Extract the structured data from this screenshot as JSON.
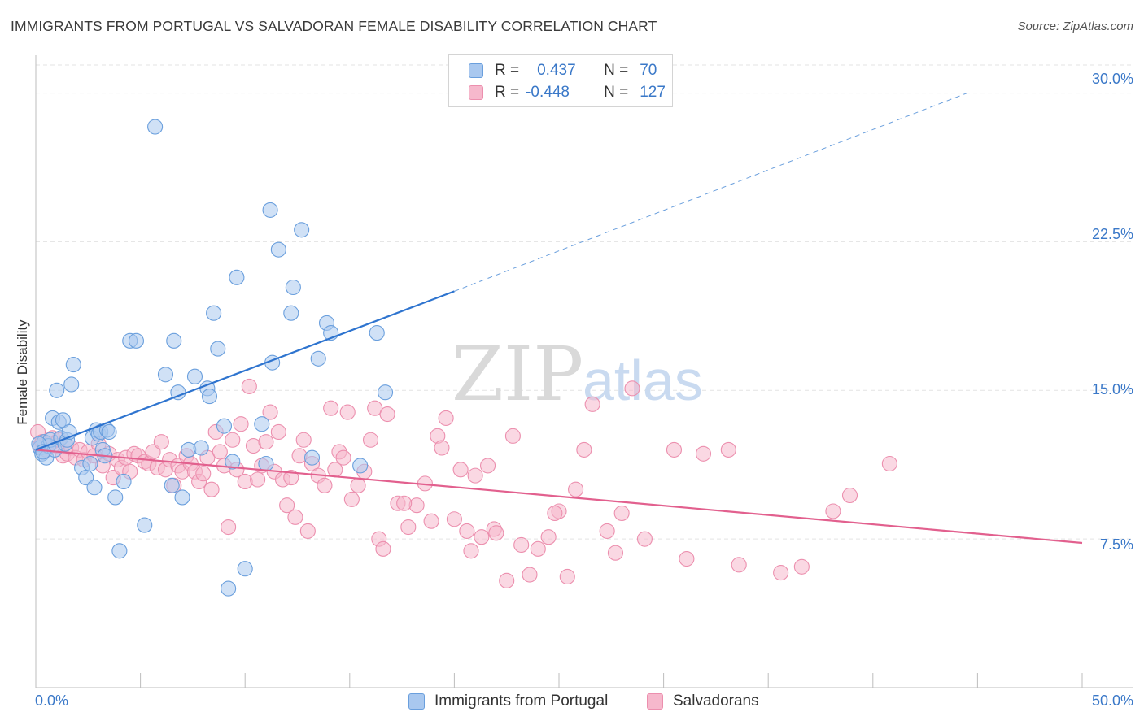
{
  "header": {
    "title": "IMMIGRANTS FROM PORTUGAL VS SALVADORAN FEMALE DISABILITY CORRELATION CHART",
    "source": "Source: ZipAtlas.com"
  },
  "watermark": {
    "part1": "ZIP",
    "part2": "atlas"
  },
  "legend": {
    "row1": {
      "r_label": "R =",
      "r_value": "0.437",
      "n_label": "N =",
      "n_value": "70"
    },
    "row2": {
      "r_label": "R =",
      "r_value": "-0.448",
      "n_label": "N =",
      "n_value": "127"
    }
  },
  "colors": {
    "blue_fill": "#a9c8ef",
    "blue_stroke": "#6a9fdd",
    "blue_line": "#2e74cf",
    "pink_fill": "#f6b8cc",
    "pink_stroke": "#ec8fae",
    "pink_line": "#e2608e",
    "tick_text": "#3a78c8",
    "grid": "#e3e3e3"
  },
  "chart_data": {
    "type": "scatter",
    "title": "IMMIGRANTS FROM PORTUGAL VS SALVADORAN FEMALE DISABILITY CORRELATION CHART",
    "xlabel": "",
    "ylabel": "Female Disability",
    "xlim": [
      0,
      50
    ],
    "ylim": [
      0,
      31.5
    ],
    "x_ticks": [
      0,
      50
    ],
    "x_tick_labels": [
      "0.0%",
      "50.0%"
    ],
    "y_ticks": [
      7.5,
      15.0,
      22.5,
      30.0
    ],
    "y_tick_labels": [
      "7.5%",
      "15.0%",
      "22.5%",
      "30.0%"
    ],
    "grid": true,
    "legend_position": "top-center",
    "series": [
      {
        "name": "Immigrants from Portugal",
        "color": "blue",
        "points": [
          [
            0.2,
            12.1
          ],
          [
            0.3,
            11.8
          ],
          [
            0.4,
            12.4
          ],
          [
            0.5,
            11.6
          ],
          [
            0.6,
            12.2
          ],
          [
            0.7,
            12.5
          ],
          [
            0.8,
            13.6
          ],
          [
            0.9,
            12.0
          ],
          [
            1.0,
            15.0
          ],
          [
            1.1,
            13.4
          ],
          [
            1.2,
            12.6
          ],
          [
            1.3,
            13.5
          ],
          [
            1.4,
            12.3
          ],
          [
            1.5,
            12.5
          ],
          [
            1.6,
            12.9
          ],
          [
            1.7,
            15.3
          ],
          [
            1.8,
            16.3
          ],
          [
            2.2,
            11.1
          ],
          [
            2.4,
            10.6
          ],
          [
            2.6,
            11.3
          ],
          [
            2.7,
            12.6
          ],
          [
            2.8,
            10.1
          ],
          [
            2.9,
            13.0
          ],
          [
            3.0,
            12.8
          ],
          [
            3.1,
            12.9
          ],
          [
            3.2,
            12.0
          ],
          [
            3.3,
            11.7
          ],
          [
            3.4,
            13.0
          ],
          [
            3.5,
            12.9
          ],
          [
            3.8,
            9.6
          ],
          [
            4.0,
            6.9
          ],
          [
            4.2,
            10.4
          ],
          [
            4.5,
            17.5
          ],
          [
            4.8,
            17.5
          ],
          [
            5.2,
            8.2
          ],
          [
            5.7,
            28.3
          ],
          [
            6.2,
            15.8
          ],
          [
            6.5,
            10.2
          ],
          [
            6.6,
            17.5
          ],
          [
            6.8,
            14.9
          ],
          [
            7.0,
            9.6
          ],
          [
            7.3,
            12.0
          ],
          [
            7.6,
            15.7
          ],
          [
            7.9,
            12.1
          ],
          [
            8.2,
            15.1
          ],
          [
            8.3,
            14.7
          ],
          [
            8.5,
            18.9
          ],
          [
            8.7,
            17.1
          ],
          [
            9.0,
            13.2
          ],
          [
            9.2,
            5.0
          ],
          [
            9.4,
            11.4
          ],
          [
            9.6,
            20.7
          ],
          [
            10.0,
            6.0
          ],
          [
            10.8,
            13.3
          ],
          [
            11.0,
            11.3
          ],
          [
            11.2,
            24.1
          ],
          [
            11.3,
            16.4
          ],
          [
            11.6,
            22.1
          ],
          [
            12.2,
            18.9
          ],
          [
            12.3,
            20.2
          ],
          [
            12.7,
            23.1
          ],
          [
            13.2,
            11.6
          ],
          [
            13.5,
            16.6
          ],
          [
            13.9,
            18.4
          ],
          [
            14.1,
            17.9
          ],
          [
            15.5,
            11.2
          ],
          [
            16.3,
            17.9
          ],
          [
            16.7,
            14.9
          ],
          [
            0.15,
            12.3
          ],
          [
            0.35,
            11.9
          ]
        ],
        "trend": {
          "x0": 0.0,
          "y0": 12.0,
          "x1": 20.0,
          "y1": 20.0,
          "dashed_to_x": 44.5,
          "dashed_to_y": 30.0
        }
      },
      {
        "name": "Salvadorans",
        "color": "pink",
        "points": [
          [
            0.1,
            12.9
          ],
          [
            0.2,
            12.2
          ],
          [
            0.3,
            12.4
          ],
          [
            0.5,
            12.0
          ],
          [
            0.7,
            12.3
          ],
          [
            0.8,
            12.6
          ],
          [
            1.0,
            12.2
          ],
          [
            1.1,
            12.5
          ],
          [
            1.3,
            11.7
          ],
          [
            1.5,
            11.8
          ],
          [
            1.7,
            12.1
          ],
          [
            1.9,
            11.6
          ],
          [
            2.1,
            12.0
          ],
          [
            2.3,
            11.5
          ],
          [
            2.5,
            11.9
          ],
          [
            2.8,
            11.7
          ],
          [
            3.0,
            12.3
          ],
          [
            3.2,
            11.2
          ],
          [
            3.5,
            11.8
          ],
          [
            3.7,
            10.6
          ],
          [
            3.9,
            11.5
          ],
          [
            4.1,
            11.1
          ],
          [
            4.3,
            11.6
          ],
          [
            4.5,
            10.9
          ],
          [
            4.7,
            11.8
          ],
          [
            4.9,
            11.7
          ],
          [
            5.2,
            11.4
          ],
          [
            5.4,
            11.3
          ],
          [
            5.6,
            11.9
          ],
          [
            5.8,
            11.1
          ],
          [
            6.0,
            12.4
          ],
          [
            6.2,
            11.0
          ],
          [
            6.4,
            11.5
          ],
          [
            6.6,
            10.2
          ],
          [
            6.8,
            11.2
          ],
          [
            7.0,
            10.9
          ],
          [
            7.2,
            11.7
          ],
          [
            7.4,
            11.3
          ],
          [
            7.6,
            10.9
          ],
          [
            7.8,
            10.4
          ],
          [
            8.0,
            10.8
          ],
          [
            8.2,
            11.6
          ],
          [
            8.4,
            10.0
          ],
          [
            8.6,
            12.9
          ],
          [
            8.8,
            11.9
          ],
          [
            9.0,
            11.2
          ],
          [
            9.2,
            8.1
          ],
          [
            9.4,
            12.5
          ],
          [
            9.6,
            11.0
          ],
          [
            9.8,
            13.3
          ],
          [
            10.0,
            10.4
          ],
          [
            10.2,
            15.2
          ],
          [
            10.4,
            12.2
          ],
          [
            10.6,
            10.5
          ],
          [
            10.8,
            11.2
          ],
          [
            11.0,
            12.4
          ],
          [
            11.2,
            13.9
          ],
          [
            11.4,
            10.9
          ],
          [
            11.6,
            12.9
          ],
          [
            11.8,
            10.5
          ],
          [
            12.0,
            9.2
          ],
          [
            12.2,
            10.6
          ],
          [
            12.4,
            8.6
          ],
          [
            12.6,
            11.7
          ],
          [
            12.8,
            12.5
          ],
          [
            13.0,
            7.9
          ],
          [
            13.2,
            11.3
          ],
          [
            13.5,
            10.7
          ],
          [
            13.8,
            10.2
          ],
          [
            14.1,
            14.1
          ],
          [
            14.3,
            11.0
          ],
          [
            14.5,
            11.9
          ],
          [
            14.7,
            11.6
          ],
          [
            14.9,
            13.9
          ],
          [
            15.1,
            9.5
          ],
          [
            15.4,
            10.2
          ],
          [
            15.7,
            10.9
          ],
          [
            16.0,
            12.5
          ],
          [
            16.2,
            14.1
          ],
          [
            16.4,
            7.5
          ],
          [
            16.6,
            7.0
          ],
          [
            16.8,
            13.8
          ],
          [
            17.3,
            9.3
          ],
          [
            17.8,
            8.1
          ],
          [
            18.2,
            9.2
          ],
          [
            18.6,
            10.3
          ],
          [
            18.9,
            8.4
          ],
          [
            19.2,
            12.7
          ],
          [
            19.4,
            12.1
          ],
          [
            19.6,
            13.6
          ],
          [
            20.0,
            8.5
          ],
          [
            20.3,
            11.0
          ],
          [
            20.6,
            7.9
          ],
          [
            20.8,
            6.9
          ],
          [
            21.0,
            10.7
          ],
          [
            21.3,
            7.6
          ],
          [
            21.6,
            11.2
          ],
          [
            21.9,
            8.0
          ],
          [
            22.5,
            5.4
          ],
          [
            22.8,
            12.7
          ],
          [
            23.2,
            7.2
          ],
          [
            23.6,
            5.7
          ],
          [
            24.0,
            7.0
          ],
          [
            24.5,
            7.6
          ],
          [
            25.0,
            8.9
          ],
          [
            25.4,
            5.6
          ],
          [
            25.8,
            10.0
          ],
          [
            26.2,
            12.0
          ],
          [
            26.6,
            14.3
          ],
          [
            27.3,
            7.9
          ],
          [
            27.7,
            6.8
          ],
          [
            28.0,
            8.8
          ],
          [
            28.5,
            15.1
          ],
          [
            29.1,
            7.5
          ],
          [
            30.5,
            12.0
          ],
          [
            31.1,
            6.5
          ],
          [
            31.9,
            11.8
          ],
          [
            33.1,
            12.0
          ],
          [
            33.6,
            6.2
          ],
          [
            35.6,
            5.8
          ],
          [
            36.6,
            6.1
          ],
          [
            38.1,
            8.9
          ],
          [
            38.9,
            9.7
          ],
          [
            40.8,
            11.3
          ],
          [
            17.6,
            9.3
          ],
          [
            22.0,
            7.8
          ],
          [
            24.8,
            8.8
          ]
        ],
        "trend": {
          "x0": 0.0,
          "y0": 12.0,
          "x1": 50.0,
          "y1": 7.3
        }
      }
    ]
  },
  "bottom_legend": {
    "item1": "Immigrants from Portugal",
    "item2": "Salvadorans"
  }
}
